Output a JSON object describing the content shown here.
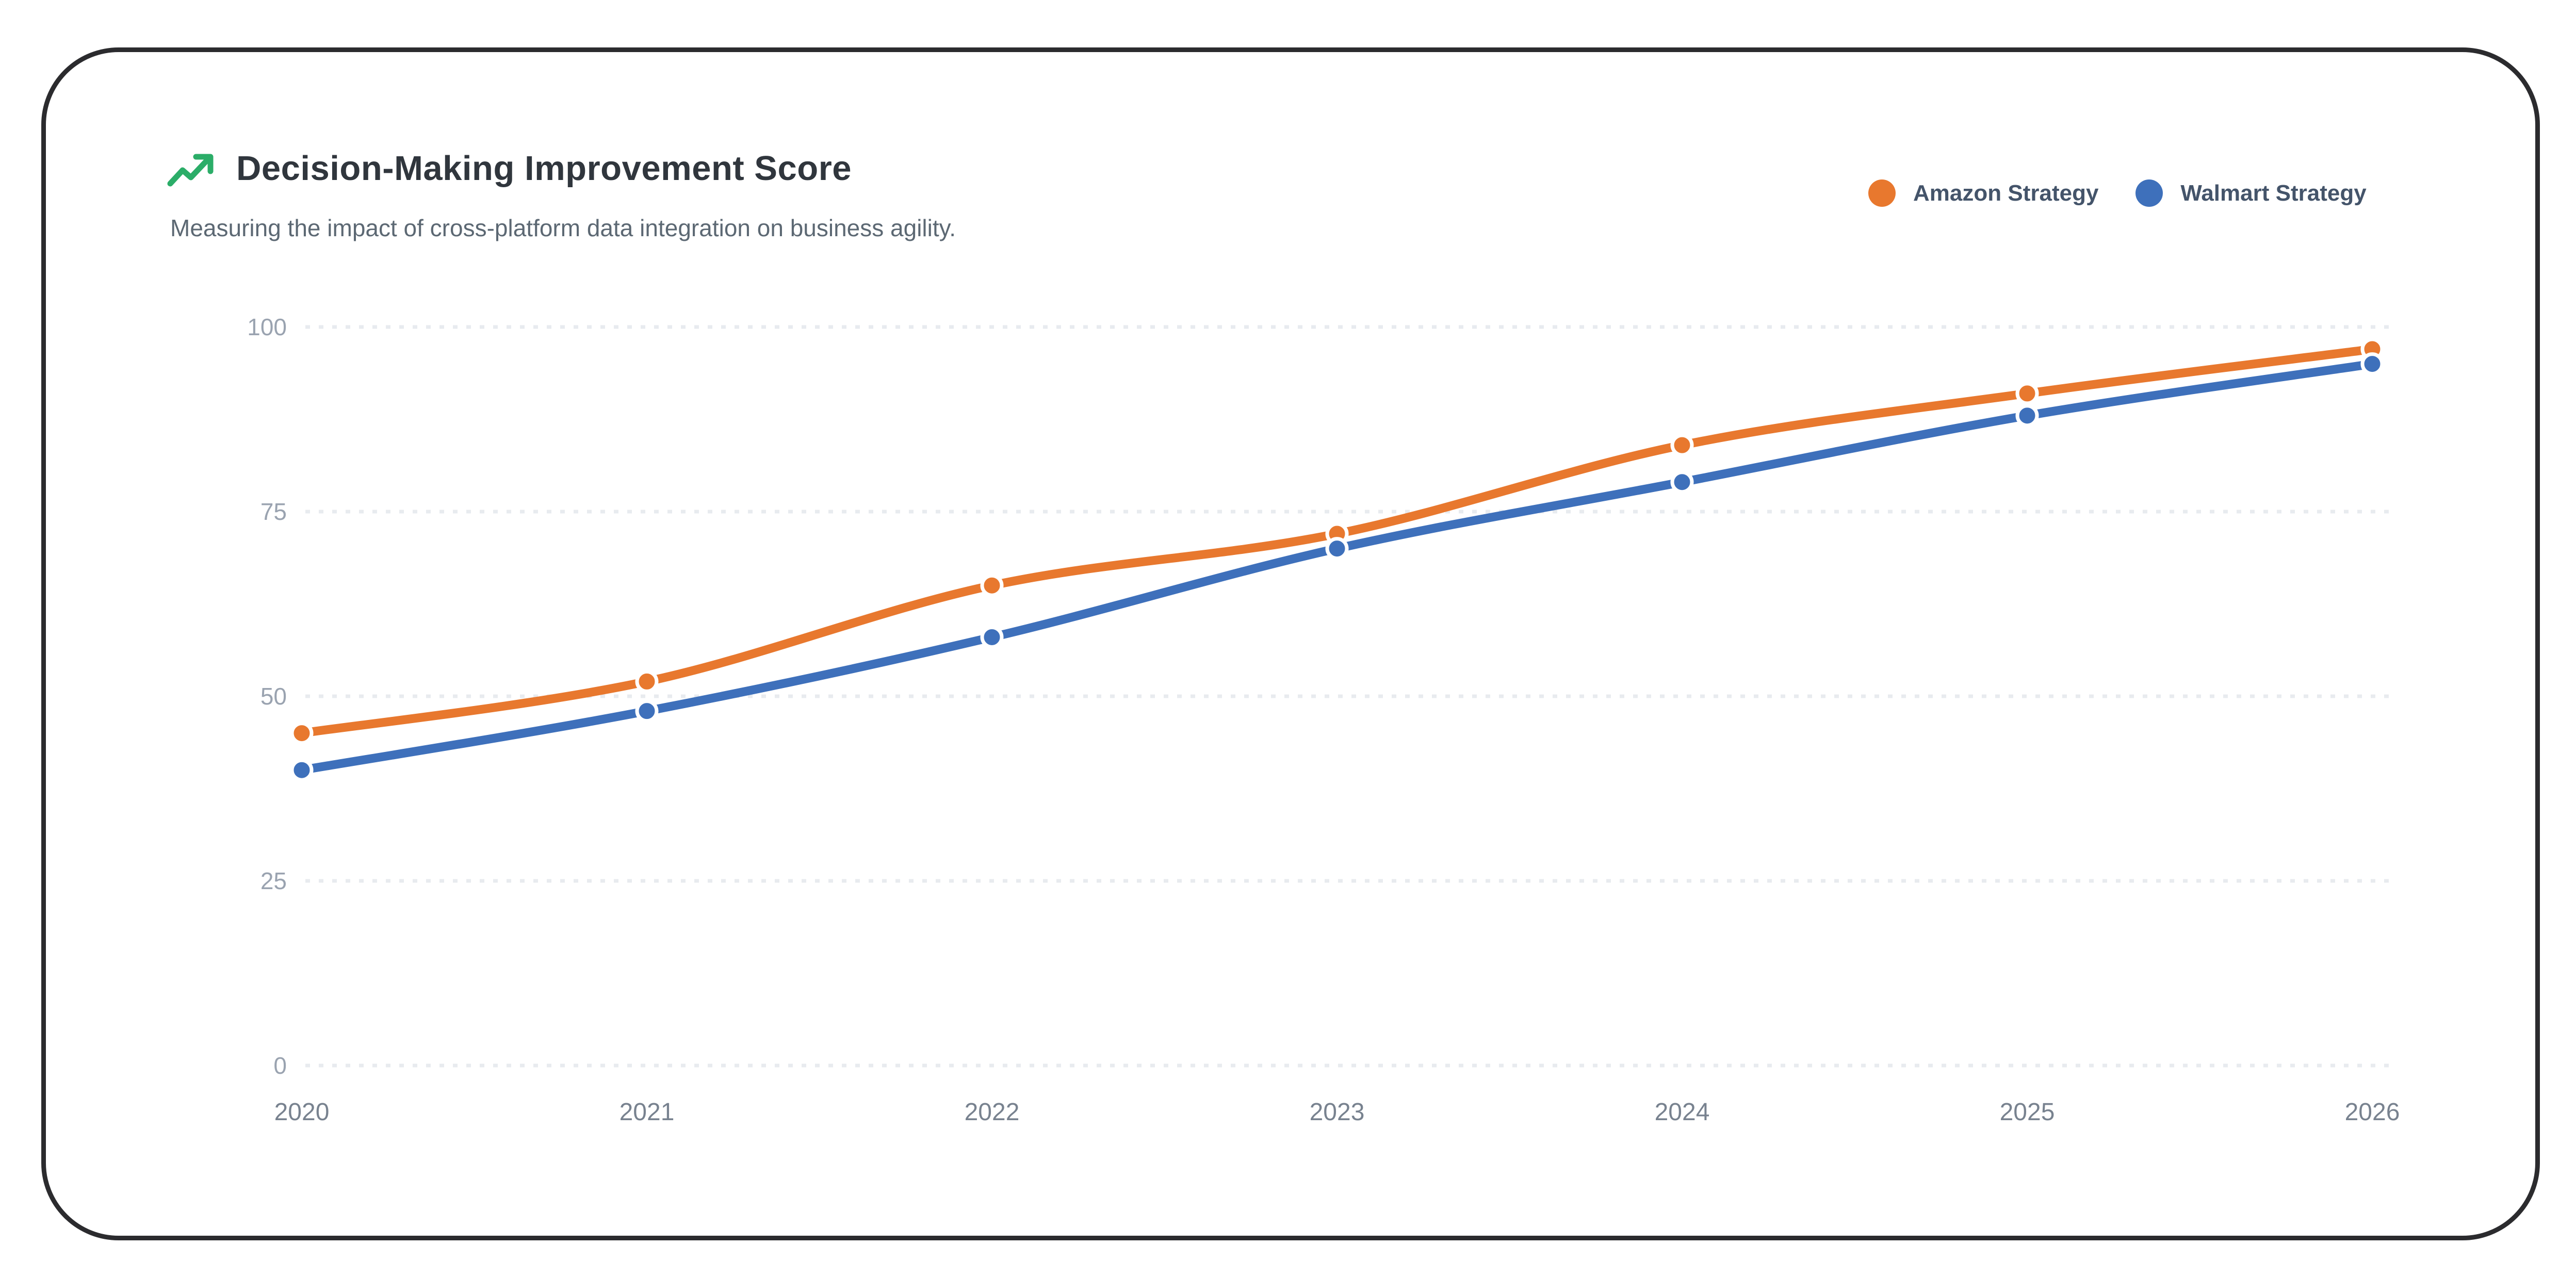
{
  "page": {
    "background": "#ffffff",
    "frame_border_color": "#2b2b2e"
  },
  "header": {
    "icon": "trending-up-icon",
    "icon_color": "#2bad68",
    "title": "Decision-Making Improvement Score",
    "subtitle": "Measuring the impact of cross-platform data integration on business agility."
  },
  "legend": {
    "position": "top-right",
    "items": [
      {
        "label": "Amazon Strategy",
        "color": "#e8782e"
      },
      {
        "label": "Walmart Strategy",
        "color": "#3e70bb"
      }
    ]
  },
  "chart_data": {
    "type": "line",
    "title": "Decision-Making Improvement Score",
    "subtitle": "Measuring the impact of cross-platform data integration on business agility.",
    "categories": [
      "2020",
      "2021",
      "2022",
      "2023",
      "2024",
      "2025",
      "2026"
    ],
    "series": [
      {
        "name": "Amazon Strategy",
        "color": "#e8782e",
        "values": [
          45,
          52,
          65,
          72,
          84,
          91,
          97
        ]
      },
      {
        "name": "Walmart Strategy",
        "color": "#3e70bb",
        "values": [
          40,
          48,
          58,
          70,
          79,
          88,
          95
        ]
      }
    ],
    "ylim": [
      0,
      100
    ],
    "yticks": [
      0,
      25,
      50,
      75,
      100
    ],
    "grid": "horizontal-dotted",
    "legend_position": "top-right",
    "curve": "smooth"
  },
  "axis_style": {
    "y_tick_color": "#9aa3b0",
    "x_tick_color": "#78828f",
    "grid_color": "#e8ebef"
  }
}
